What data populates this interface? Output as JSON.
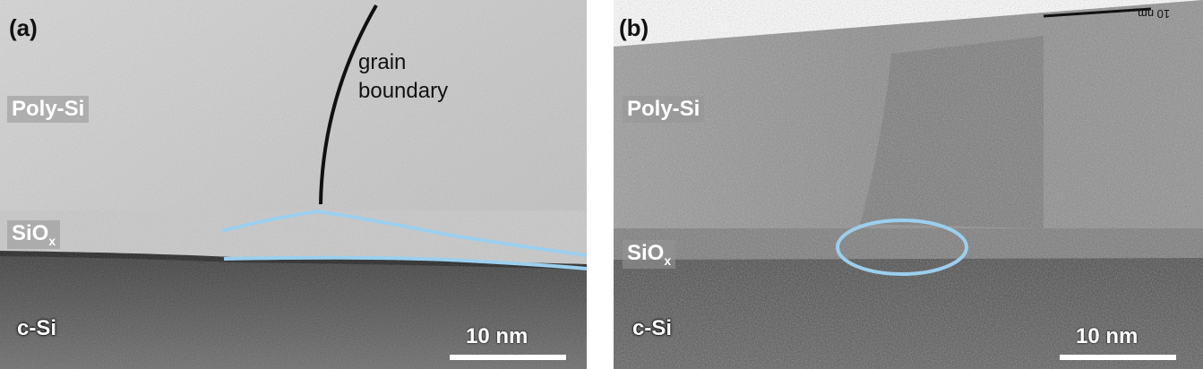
{
  "panels": {
    "a": {
      "label": "(a)",
      "layers": {
        "poly": "Poly-Si",
        "siox_main": "SiO",
        "siox_sub": "x",
        "csi": "c-Si"
      },
      "annotation": {
        "line1": "grain",
        "line2": "boundary"
      },
      "scale": "10 nm"
    },
    "b": {
      "label": "(b)",
      "layers": {
        "poly": "Poly-Si",
        "siox_main": "SiO",
        "siox_sub": "x",
        "csi": "c-Si"
      },
      "scale": "10 nm",
      "top_scale": "10 nm"
    }
  },
  "colors": {
    "highlight": "#9ccfee",
    "boundary": "#111111"
  }
}
